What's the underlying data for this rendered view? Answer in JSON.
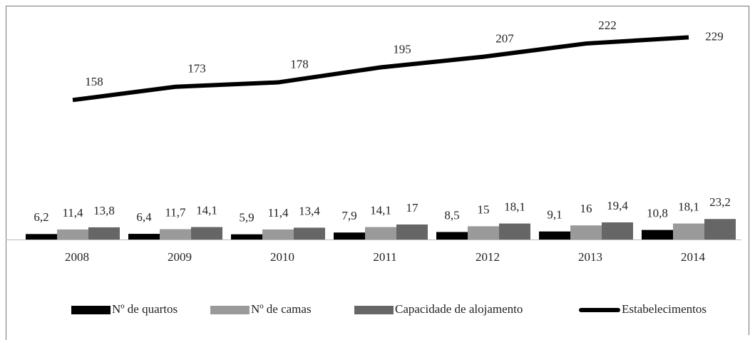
{
  "chart_data": {
    "type": "bar_line",
    "categories": [
      "2008",
      "2009",
      "2010",
      "2011",
      "2012",
      "2013",
      "2014"
    ],
    "series": [
      {
        "name": "Nº de quartos",
        "type": "bar",
        "color": "#000000",
        "values": [
          6.2,
          6.4,
          5.9,
          7.9,
          8.5,
          9.1,
          10.8
        ],
        "value_labels": [
          "6,2",
          "6,4",
          "5,9",
          "7,9",
          "8,5",
          "9,1",
          "10,8"
        ]
      },
      {
        "name": "Nº de camas",
        "type": "bar",
        "color": "#9a9a9a",
        "values": [
          11.4,
          11.7,
          11.4,
          14.1,
          15,
          16,
          18.1
        ],
        "value_labels": [
          "11,4",
          "11,7",
          "11,4",
          "14,1",
          "15",
          "16",
          "18,1"
        ]
      },
      {
        "name": "Capacidade de alojamento",
        "type": "bar",
        "color": "#666666",
        "values": [
          13.8,
          14.1,
          13.4,
          17,
          18.1,
          19.4,
          23.2
        ],
        "value_labels": [
          "13,8",
          "14,1",
          "13,4",
          "17",
          "18,1",
          "19,4",
          "23,2"
        ]
      },
      {
        "name": "Estabelecimentos",
        "type": "line",
        "color": "#000000",
        "values": [
          158,
          173,
          178,
          195,
          207,
          222,
          229
        ]
      }
    ],
    "ylim": [
      0,
      260
    ],
    "legend": "bottom"
  }
}
